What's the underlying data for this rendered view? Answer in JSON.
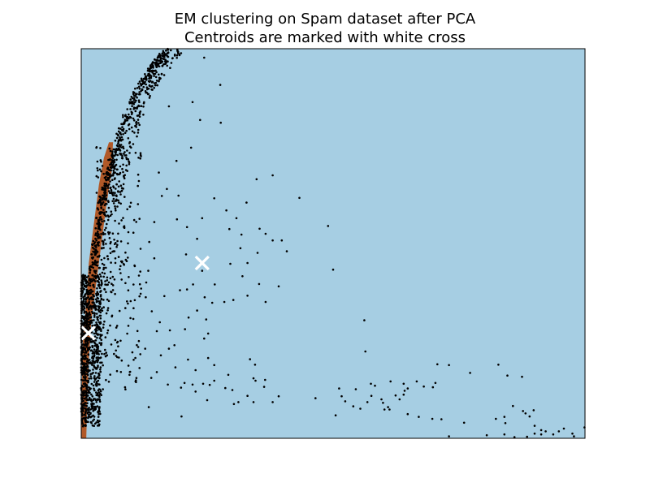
{
  "chart_data": {
    "type": "scatter",
    "title": [
      "EM clustering on Spam dataset after PCA",
      "Centroids are marked with white cross"
    ],
    "xlabel": "",
    "ylabel": "",
    "xlim": [
      0,
      1
    ],
    "ylim": [
      0,
      1
    ],
    "ticks_visible": false,
    "grid": false,
    "legend": "none",
    "colors": {
      "background_region": "#a6cee3",
      "cluster_region": "#b15928",
      "points": "#000000",
      "centroids": "#ffffff"
    },
    "regions": [
      {
        "label": "cluster-2-region",
        "boundary": [
          [
            0.0,
            0.05
          ],
          [
            0.003,
            0.25
          ],
          [
            0.01,
            0.35
          ],
          [
            0.015,
            0.45
          ],
          [
            0.025,
            0.55
          ],
          [
            0.035,
            0.65
          ],
          [
            0.045,
            0.72
          ],
          [
            0.055,
            0.76
          ],
          [
            0.063,
            0.76
          ],
          [
            0.06,
            0.68
          ],
          [
            0.05,
            0.6
          ],
          [
            0.04,
            0.5
          ],
          [
            0.03,
            0.4
          ],
          [
            0.02,
            0.3
          ],
          [
            0.015,
            0.2
          ],
          [
            0.012,
            0.1
          ],
          [
            0.01,
            0.0
          ],
          [
            0.0,
            0.0
          ]
        ]
      }
    ],
    "centroids": [
      {
        "x": 0.014,
        "y": 0.27
      },
      {
        "x": 0.24,
        "y": 0.45
      }
    ],
    "point_groups": [
      {
        "kind": "arc",
        "curve": [
          [
            0.0,
            0.06
          ],
          [
            0.005,
            0.2
          ],
          [
            0.012,
            0.3
          ],
          [
            0.02,
            0.4
          ],
          [
            0.03,
            0.5
          ],
          [
            0.04,
            0.6
          ],
          [
            0.05,
            0.65
          ],
          [
            0.065,
            0.72
          ],
          [
            0.085,
            0.81
          ],
          [
            0.11,
            0.89
          ],
          [
            0.14,
            0.95
          ],
          [
            0.17,
            0.995
          ]
        ],
        "spread_left": 0.008,
        "spread_right": 0.035,
        "count": 900
      },
      {
        "kind": "dense-core",
        "x_range": [
          0.0,
          0.04
        ],
        "y_range": [
          0.03,
          0.42
        ],
        "count": 700
      },
      {
        "kind": "cloud",
        "x_range": [
          0.03,
          0.12
        ],
        "y_range": [
          0.12,
          0.75
        ],
        "count": 260
      }
    ],
    "points": [
      [
        0.244,
        0.977
      ],
      [
        0.276,
        0.907
      ],
      [
        0.221,
        0.863
      ],
      [
        0.277,
        0.81
      ],
      [
        0.236,
        0.817
      ],
      [
        0.174,
        0.852
      ],
      [
        0.218,
        0.746
      ],
      [
        0.348,
        0.665
      ],
      [
        0.38,
        0.675
      ],
      [
        0.328,
        0.605
      ],
      [
        0.264,
        0.616
      ],
      [
        0.24,
        0.565
      ],
      [
        0.288,
        0.585
      ],
      [
        0.308,
        0.565
      ],
      [
        0.294,
        0.537
      ],
      [
        0.318,
        0.523
      ],
      [
        0.354,
        0.538
      ],
      [
        0.366,
        0.525
      ],
      [
        0.38,
        0.508
      ],
      [
        0.398,
        0.508
      ],
      [
        0.408,
        0.48
      ],
      [
        0.316,
        0.488
      ],
      [
        0.35,
        0.476
      ],
      [
        0.33,
        0.45
      ],
      [
        0.296,
        0.448
      ],
      [
        0.32,
        0.416
      ],
      [
        0.33,
        0.366
      ],
      [
        0.302,
        0.355
      ],
      [
        0.284,
        0.35
      ],
      [
        0.366,
        0.35
      ],
      [
        0.392,
        0.39
      ],
      [
        0.353,
        0.396
      ],
      [
        0.24,
        0.43
      ],
      [
        0.265,
        0.395
      ],
      [
        0.222,
        0.395
      ],
      [
        0.21,
        0.382
      ],
      [
        0.196,
        0.38
      ],
      [
        0.245,
        0.362
      ],
      [
        0.26,
        0.348
      ],
      [
        0.23,
        0.328
      ],
      [
        0.213,
        0.31
      ],
      [
        0.248,
        0.305
      ],
      [
        0.252,
        0.269
      ],
      [
        0.244,
        0.256
      ],
      [
        0.206,
        0.28
      ],
      [
        0.176,
        0.277
      ],
      [
        0.156,
        0.298
      ],
      [
        0.14,
        0.326
      ],
      [
        0.165,
        0.365
      ],
      [
        0.129,
        0.4
      ],
      [
        0.133,
        0.43
      ],
      [
        0.208,
        0.472
      ],
      [
        0.23,
        0.512
      ],
      [
        0.21,
        0.542
      ],
      [
        0.19,
        0.562
      ],
      [
        0.16,
        0.622
      ],
      [
        0.17,
        0.64
      ],
      [
        0.154,
        0.682
      ],
      [
        0.189,
        0.712
      ],
      [
        0.193,
        0.623
      ],
      [
        0.145,
        0.555
      ],
      [
        0.135,
        0.504
      ],
      [
        0.145,
        0.462
      ],
      [
        0.128,
        0.362
      ],
      [
        0.15,
        0.275
      ],
      [
        0.185,
        0.239
      ],
      [
        0.212,
        0.202
      ],
      [
        0.227,
        0.175
      ],
      [
        0.252,
        0.206
      ],
      [
        0.264,
        0.188
      ],
      [
        0.292,
        0.163
      ],
      [
        0.264,
        0.148
      ],
      [
        0.3,
        0.124
      ],
      [
        0.33,
        0.109
      ],
      [
        0.342,
        0.154
      ],
      [
        0.335,
        0.203
      ],
      [
        0.345,
        0.189
      ],
      [
        0.365,
        0.15
      ],
      [
        0.363,
        0.132
      ],
      [
        0.346,
        0.148
      ],
      [
        0.392,
        0.108
      ],
      [
        0.312,
        0.093
      ],
      [
        0.342,
        0.093
      ],
      [
        0.38,
        0.093
      ],
      [
        0.25,
        0.098
      ],
      [
        0.286,
        0.129
      ],
      [
        0.303,
        0.088
      ],
      [
        0.199,
        0.056
      ],
      [
        0.198,
        0.13
      ],
      [
        0.172,
        0.138
      ],
      [
        0.187,
        0.182
      ],
      [
        0.158,
        0.213
      ],
      [
        0.174,
        0.23
      ],
      [
        0.127,
        0.23
      ],
      [
        0.139,
        0.155
      ],
      [
        0.15,
        0.17
      ],
      [
        0.134,
        0.08
      ],
      [
        0.227,
        0.12
      ],
      [
        0.221,
        0.138
      ],
      [
        0.242,
        0.14
      ],
      [
        0.255,
        0.137
      ],
      [
        0.205,
        0.142
      ],
      [
        0.49,
        0.545
      ],
      [
        0.5,
        0.433
      ],
      [
        0.433,
        0.617
      ],
      [
        0.562,
        0.303
      ],
      [
        0.564,
        0.223
      ],
      [
        0.512,
        0.128
      ],
      [
        0.554,
        0.076
      ],
      [
        0.505,
        0.059
      ],
      [
        0.465,
        0.103
      ],
      [
        0.575,
        0.14
      ],
      [
        0.568,
        0.093
      ],
      [
        0.54,
        0.082
      ],
      [
        0.624,
        0.11
      ],
      [
        0.596,
        0.1
      ],
      [
        0.64,
        0.112
      ],
      [
        0.632,
        0.1
      ],
      [
        0.642,
        0.122
      ],
      [
        0.666,
        0.146
      ],
      [
        0.68,
        0.133
      ],
      [
        0.73,
        0.188
      ],
      [
        0.707,
        0.19
      ],
      [
        0.772,
        0.168
      ],
      [
        0.828,
        0.189
      ],
      [
        0.846,
        0.161
      ],
      [
        0.875,
        0.158
      ],
      [
        0.857,
        0.083
      ],
      [
        0.877,
        0.07
      ],
      [
        0.882,
        0.064
      ],
      [
        0.898,
        0.072
      ],
      [
        0.9,
        0.032
      ],
      [
        0.913,
        0.021
      ],
      [
        0.922,
        0.018
      ],
      [
        0.948,
        0.018
      ],
      [
        0.958,
        0.025
      ],
      [
        0.999,
        0.028
      ],
      [
        0.89,
        0.056
      ],
      [
        0.84,
        0.055
      ],
      [
        0.823,
        0.05
      ],
      [
        0.842,
        0.039
      ],
      [
        0.76,
        0.04
      ],
      [
        0.73,
        0.005
      ],
      [
        0.805,
        0.008
      ],
      [
        0.84,
        0.01
      ],
      [
        0.86,
        0.003
      ],
      [
        0.885,
        0.004
      ],
      [
        0.9,
        0.012
      ],
      [
        0.913,
        0.01
      ],
      [
        0.937,
        0.01
      ],
      [
        0.975,
        0.012
      ],
      [
        0.978,
        0.005
      ],
      [
        0.64,
        0.14
      ],
      [
        0.648,
        0.128
      ],
      [
        0.703,
        0.142
      ],
      [
        0.698,
        0.131
      ],
      [
        0.583,
        0.135
      ],
      [
        0.614,
        0.146
      ],
      [
        0.545,
        0.126
      ],
      [
        0.517,
        0.108
      ],
      [
        0.524,
        0.095
      ],
      [
        0.576,
        0.109
      ],
      [
        0.599,
        0.091
      ],
      [
        0.612,
        0.074
      ],
      [
        0.648,
        0.062
      ],
      [
        0.67,
        0.055
      ],
      [
        0.697,
        0.05
      ],
      [
        0.715,
        0.049
      ],
      [
        0.602,
        0.074
      ],
      [
        0.609,
        0.08
      ]
    ]
  }
}
